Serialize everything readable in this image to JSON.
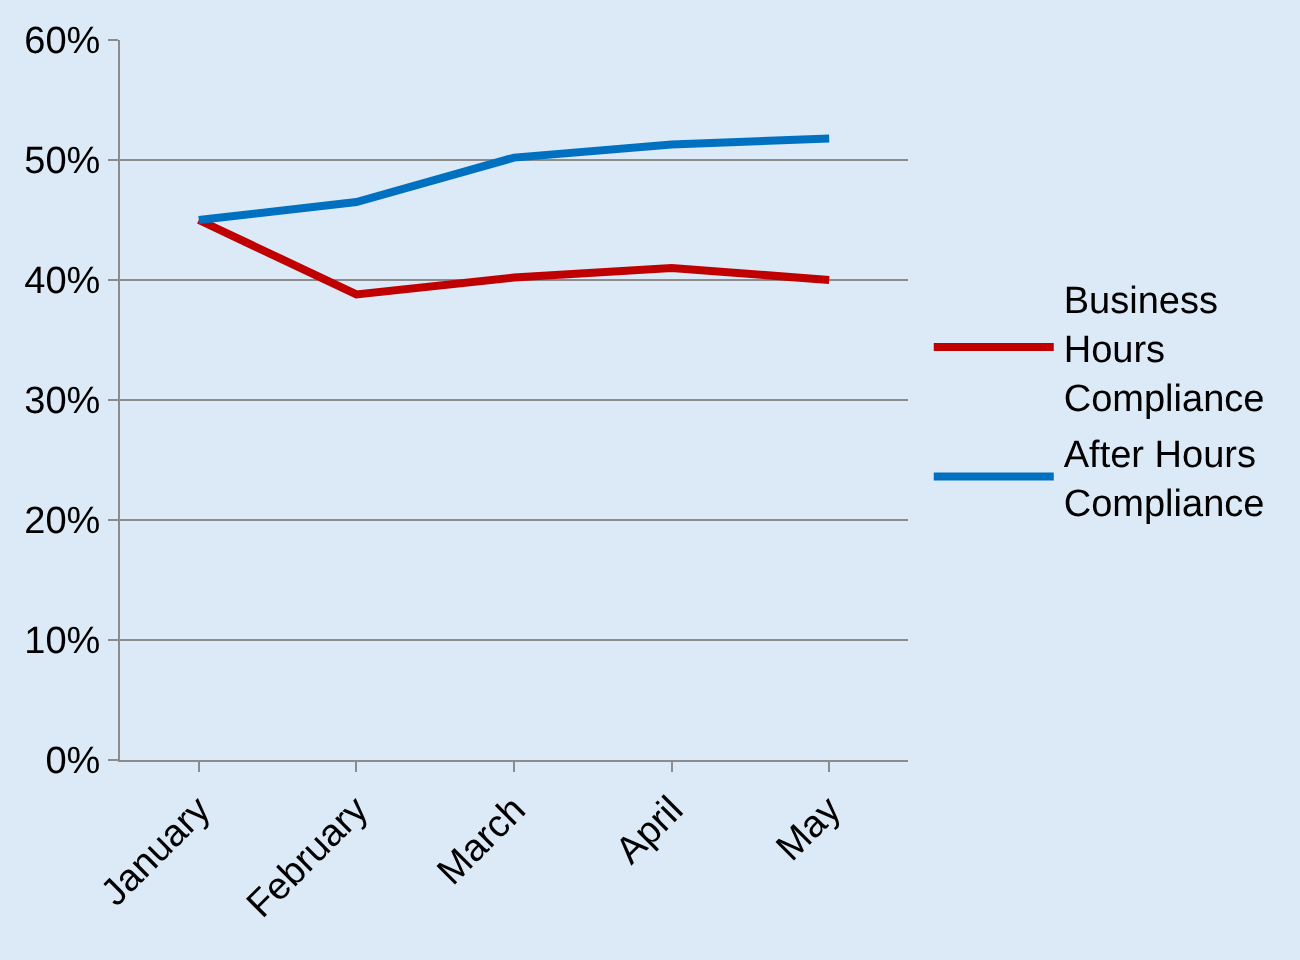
{
  "chart_data": {
    "type": "line",
    "categories": [
      "January",
      "February",
      "March",
      "April",
      "May"
    ],
    "series": [
      {
        "name": "Business Hours Compliance",
        "color": "#c00000",
        "values": [
          45.0,
          38.8,
          40.2,
          41.0,
          40.0
        ]
      },
      {
        "name": "After Hours Compliance",
        "color": "#0070c0",
        "values": [
          45.0,
          46.5,
          50.2,
          51.3,
          51.8
        ]
      }
    ],
    "ylim": [
      0,
      60
    ],
    "yticks": [
      {
        "value": 0,
        "label": "0%"
      },
      {
        "value": 10,
        "label": "10%"
      },
      {
        "value": 20,
        "label": "20%"
      },
      {
        "value": 30,
        "label": "30%"
      },
      {
        "value": 40,
        "label": "40%"
      },
      {
        "value": 50,
        "label": "50%"
      },
      {
        "value": 60,
        "label": "60%"
      }
    ],
    "grid": "y",
    "legend": "right",
    "marker": "none",
    "line_style": "solid"
  }
}
